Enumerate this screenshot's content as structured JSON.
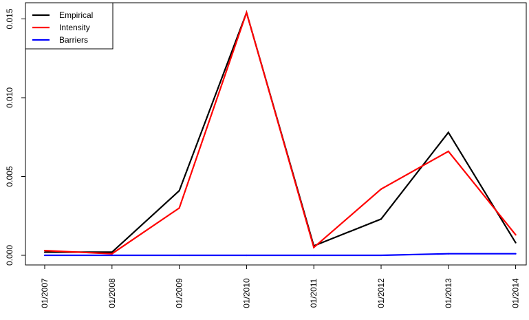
{
  "chart_data": {
    "type": "line",
    "title": "",
    "xlabel": "",
    "ylabel": "",
    "categories": [
      "01/2007",
      "01/2008",
      "01/2009",
      "01/2010",
      "01/2011",
      "01/2012",
      "01/2013",
      "01/2014"
    ],
    "ylim": [
      0.0,
      0.0155
    ],
    "yticks": [
      "0.000",
      "0.005",
      "0.010",
      "0.015"
    ],
    "grid": false,
    "legend_position": "top-left",
    "series": [
      {
        "name": "Empirical",
        "color": "#000000",
        "values": [
          0.0002,
          0.0002,
          0.0041,
          0.0154,
          0.0006,
          0.0023,
          0.0078,
          0.0008
        ]
      },
      {
        "name": "Intensity",
        "color": "#ff0000",
        "values": [
          0.0003,
          0.0001,
          0.003,
          0.0154,
          0.0005,
          0.0042,
          0.0066,
          0.0013
        ]
      },
      {
        "name": "Barriers",
        "color": "#0000ff",
        "values": [
          0.0,
          0.0,
          0.0,
          0.0,
          0.0,
          0.0,
          0.0001,
          0.0001
        ]
      }
    ]
  }
}
